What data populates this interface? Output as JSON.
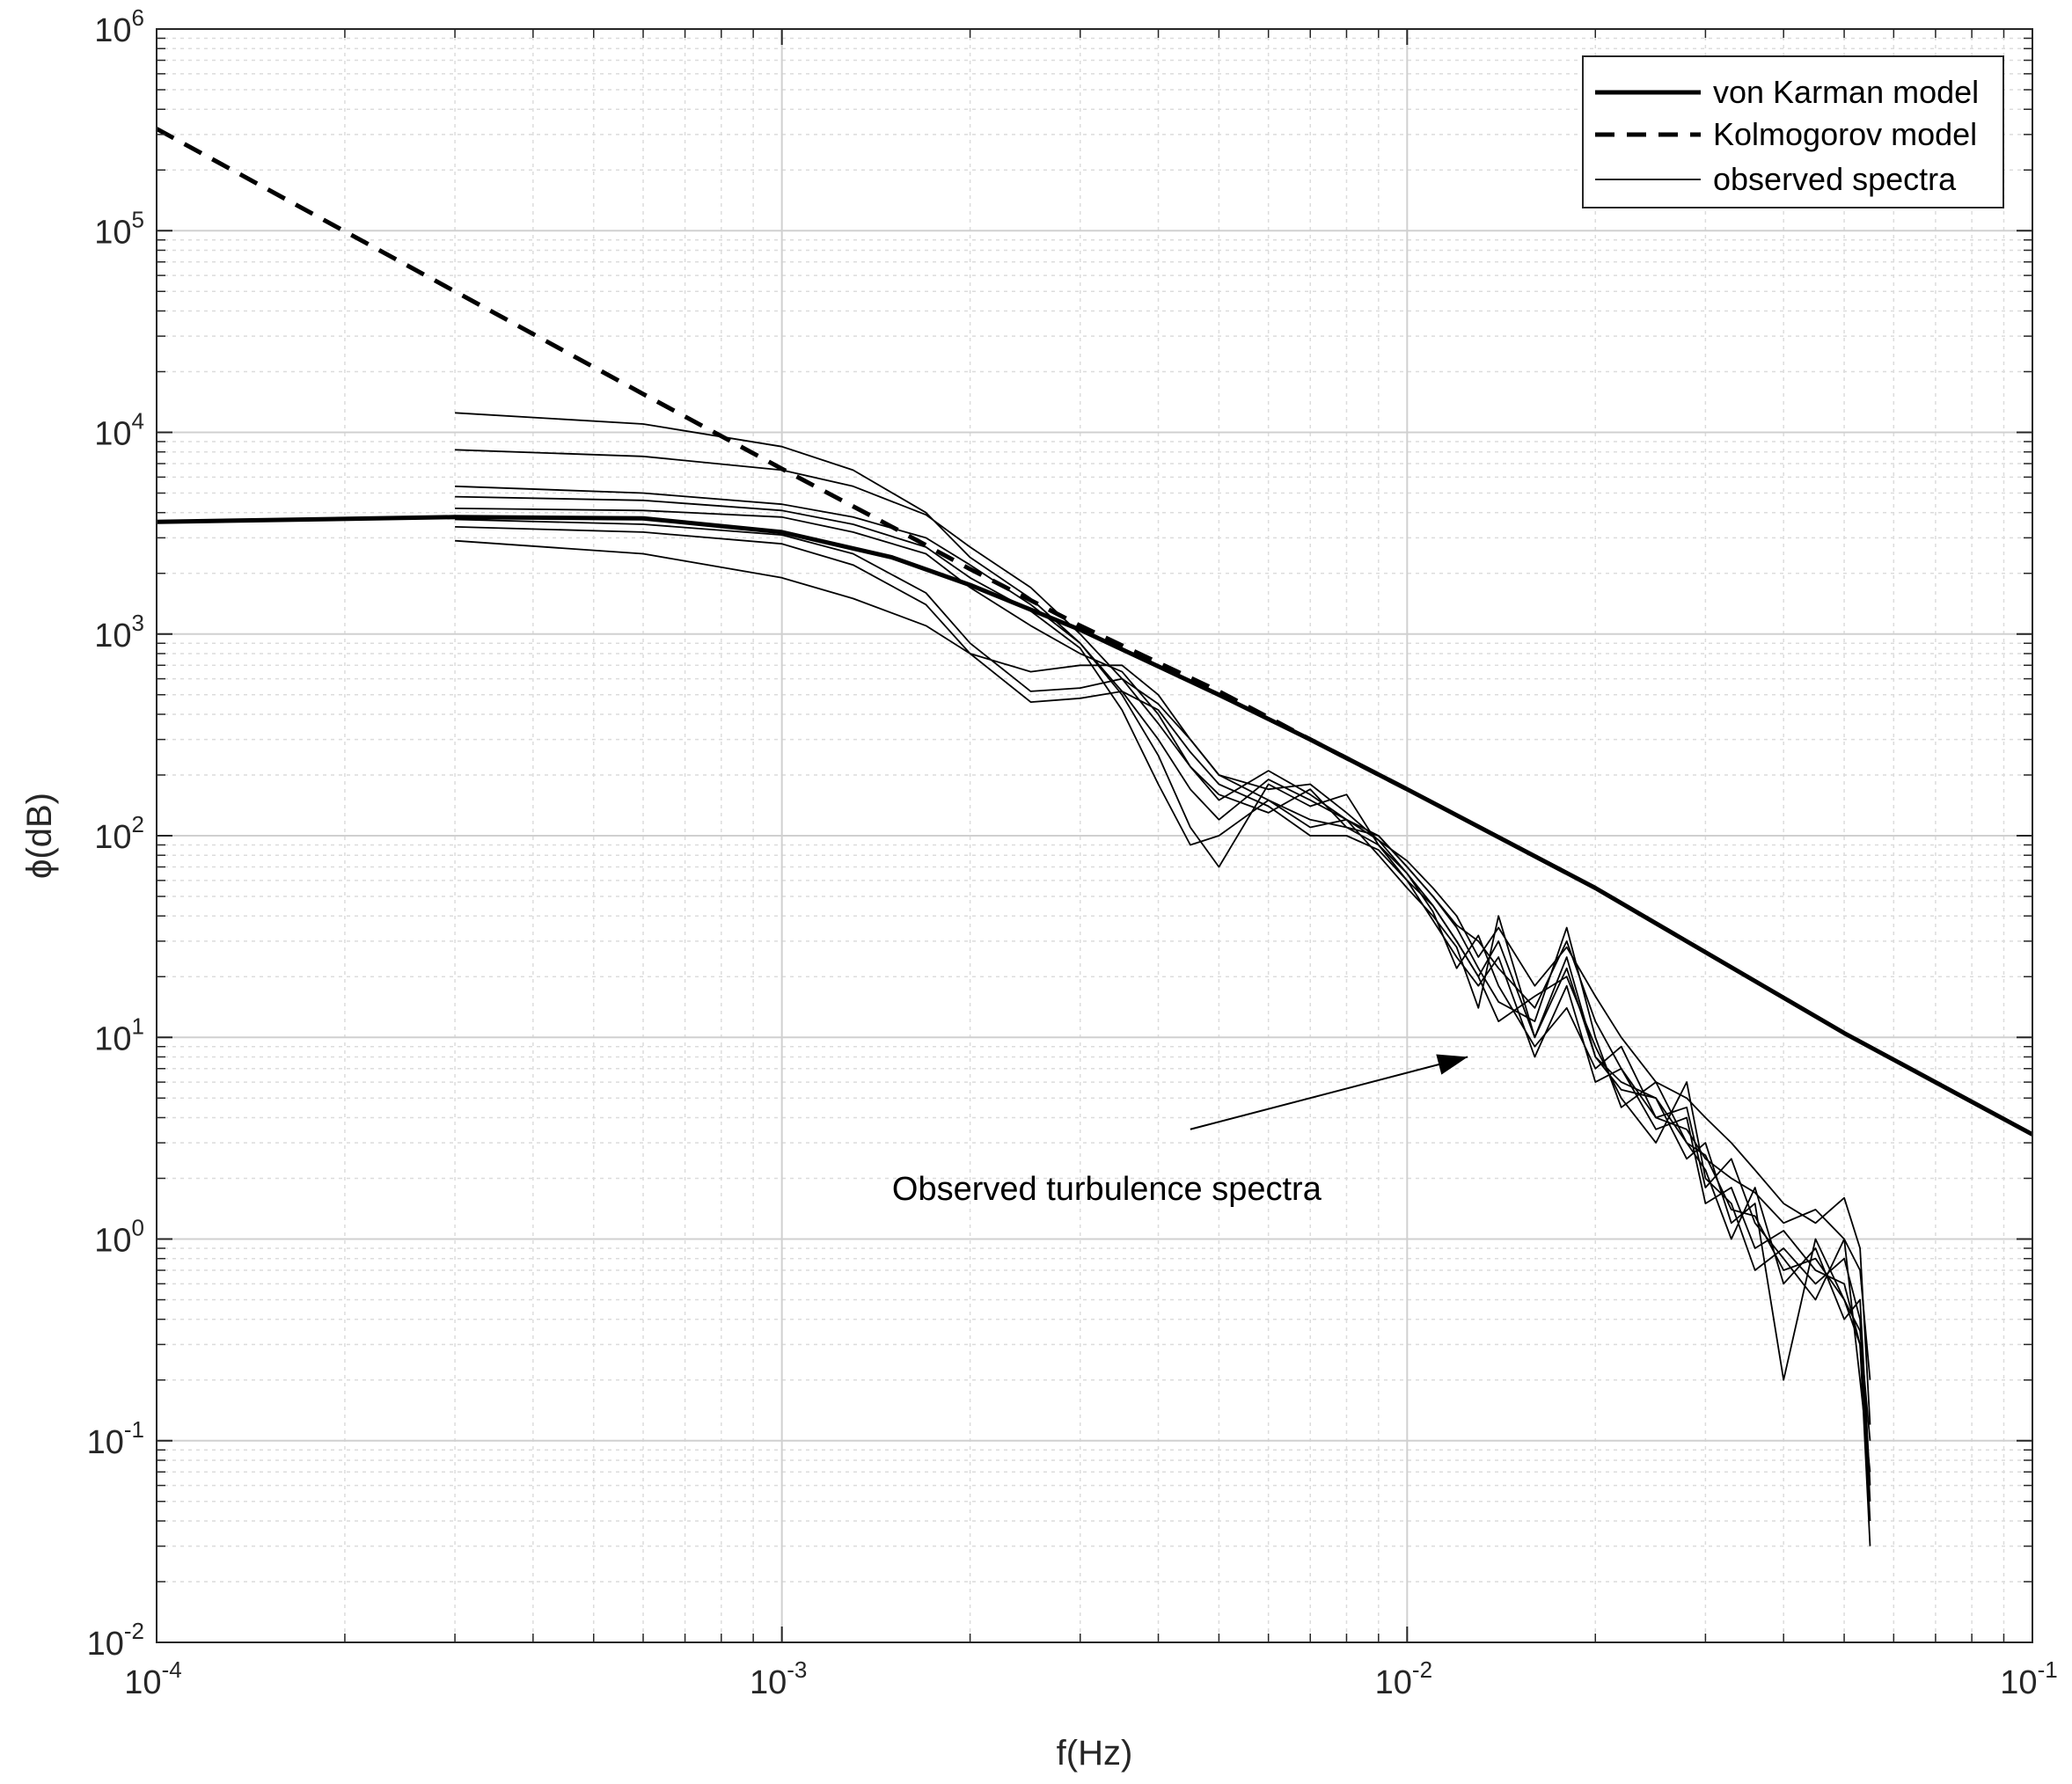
{
  "chart_data": {
    "type": "line",
    "xlabel": "f(Hz)",
    "ylabel": "ϕ(dB)",
    "xscale": "log",
    "yscale": "log",
    "xlim": [
      0.0001,
      0.1
    ],
    "ylim": [
      0.01,
      1000000
    ],
    "grid": true,
    "minor_grid": true,
    "legend_position": "top-right",
    "x_ticks": [
      {
        "base": "10",
        "exp": "-4",
        "value": 0.0001
      },
      {
        "base": "10",
        "exp": "-3",
        "value": 0.001
      },
      {
        "base": "10",
        "exp": "-2",
        "value": 0.01
      },
      {
        "base": "10",
        "exp": "-1",
        "value": 0.1
      }
    ],
    "y_ticks": [
      {
        "base": "10",
        "exp": "-2",
        "value": 0.01
      },
      {
        "base": "10",
        "exp": "-1",
        "value": 0.1
      },
      {
        "base": "10",
        "exp": "0",
        "value": 1
      },
      {
        "base": "10",
        "exp": "1",
        "value": 10
      },
      {
        "base": "10",
        "exp": "2",
        "value": 100
      },
      {
        "base": "10",
        "exp": "3",
        "value": 1000
      },
      {
        "base": "10",
        "exp": "4",
        "value": 10000
      },
      {
        "base": "10",
        "exp": "5",
        "value": 100000
      },
      {
        "base": "10",
        "exp": "6",
        "value": 1000000
      }
    ],
    "legend": [
      {
        "label": "von Karman model",
        "style": "thick-solid"
      },
      {
        "label": "Kolmogorov model",
        "style": "thick-dashed"
      },
      {
        "label": "observed spectra",
        "style": "thin-solid"
      }
    ],
    "annotation": {
      "text": "Observed turbulence spectra",
      "arrow_from": [
        0.0045,
        3.5
      ],
      "arrow_to": [
        0.0125,
        8.0
      ]
    },
    "series": [
      {
        "name": "von Karman model",
        "style": "thick-solid",
        "x": [
          0.0001,
          0.0003,
          0.0006,
          0.001,
          0.0015,
          0.002,
          0.003,
          0.005,
          0.007,
          0.01,
          0.02,
          0.05,
          0.1
        ],
        "y": [
          3600,
          3800,
          3750,
          3200,
          2400,
          1750,
          1050,
          500,
          300,
          170,
          55,
          10.5,
          3.3
        ]
      },
      {
        "name": "Kolmogorov model",
        "style": "thick-dashed",
        "x": [
          0.0001,
          0.0003,
          0.0006,
          0.001,
          0.0015,
          0.002,
          0.003,
          0.005,
          0.007,
          0.01
        ],
        "y": [
          320000,
          50000,
          15500,
          6600,
          3400,
          2100,
          1100,
          520,
          300,
          170
        ]
      },
      {
        "name": "observed spectra",
        "style": "thin-solid",
        "x": [
          0.0003,
          0.0006,
          0.001,
          0.0013,
          0.0017,
          0.002,
          0.0025,
          0.003,
          0.0035,
          0.004,
          0.0045,
          0.005,
          0.006,
          0.007,
          0.008,
          0.009,
          0.01,
          0.011,
          0.012,
          0.013,
          0.014,
          0.016,
          0.018,
          0.02,
          0.022,
          0.025,
          0.028,
          0.03,
          0.033,
          0.036,
          0.04,
          0.045,
          0.05,
          0.053,
          0.055
        ],
        "y": [
          12500,
          11000,
          8500,
          6500,
          4000,
          2400,
          1500,
          900,
          520,
          300,
          170,
          120,
          190,
          150,
          120,
          95,
          75,
          55,
          40,
          25,
          35,
          18,
          28,
          16,
          10,
          6,
          5,
          4,
          3,
          2.2,
          1.5,
          1.2,
          1.6,
          0.9,
          0.12
        ]
      },
      {
        "name": "observed spectra",
        "style": "thin-solid",
        "x": [
          0.0003,
          0.0006,
          0.001,
          0.0013,
          0.0017,
          0.002,
          0.0025,
          0.003,
          0.0035,
          0.004,
          0.0045,
          0.005,
          0.006,
          0.007,
          0.008,
          0.009,
          0.01,
          0.011,
          0.012,
          0.013,
          0.014,
          0.016,
          0.018,
          0.02,
          0.022,
          0.025,
          0.028,
          0.03,
          0.033,
          0.036,
          0.04,
          0.045,
          0.05,
          0.053,
          0.055
        ],
        "y": [
          8200,
          7600,
          6500,
          5400,
          3900,
          2700,
          1700,
          1000,
          600,
          360,
          220,
          150,
          210,
          160,
          120,
          100,
          70,
          50,
          36,
          30,
          22,
          14,
          30,
          12,
          7,
          4,
          3.5,
          2.5,
          2,
          1.7,
          1.2,
          1.4,
          1.0,
          0.7,
          0.2
        ]
      },
      {
        "name": "observed spectra",
        "style": "thin-solid",
        "x": [
          0.0003,
          0.0006,
          0.001,
          0.0013,
          0.0017,
          0.002,
          0.0025,
          0.003,
          0.0035,
          0.004,
          0.0045,
          0.005,
          0.006,
          0.007,
          0.008,
          0.009,
          0.01,
          0.011,
          0.012,
          0.013,
          0.014,
          0.016,
          0.018,
          0.02,
          0.022,
          0.025,
          0.028,
          0.03,
          0.033,
          0.036,
          0.04,
          0.045,
          0.05,
          0.053,
          0.055
        ],
        "y": [
          5400,
          5000,
          4400,
          3800,
          3000,
          2200,
          1400,
          900,
          500,
          250,
          110,
          70,
          180,
          140,
          160,
          90,
          60,
          45,
          30,
          20,
          12,
          16,
          20,
          9,
          5,
          3,
          6,
          2,
          1.5,
          0.7,
          0.9,
          0.6,
          0.8,
          0.4,
          0.05
        ]
      },
      {
        "name": "observed spectra",
        "style": "thin-solid",
        "x": [
          0.0003,
          0.0006,
          0.001,
          0.0013,
          0.0017,
          0.002,
          0.0025,
          0.003,
          0.0035,
          0.004,
          0.0045,
          0.005,
          0.006,
          0.007,
          0.008,
          0.009,
          0.01,
          0.011,
          0.012,
          0.013,
          0.014,
          0.016,
          0.018,
          0.02,
          0.022,
          0.025,
          0.028,
          0.03,
          0.033,
          0.036,
          0.04,
          0.045,
          0.05,
          0.053,
          0.055
        ],
        "y": [
          4800,
          4600,
          4100,
          3500,
          2700,
          1900,
          1300,
          850,
          420,
          180,
          90,
          100,
          150,
          110,
          120,
          80,
          55,
          40,
          28,
          14,
          40,
          10,
          25,
          8,
          6,
          5,
          2.5,
          3,
          1.2,
          1.5,
          0.2,
          1.0,
          0.5,
          0.3,
          0.03
        ]
      },
      {
        "name": "observed spectra",
        "style": "thin-solid",
        "x": [
          0.0003,
          0.0006,
          0.001,
          0.0013,
          0.0017,
          0.002,
          0.0025,
          0.003,
          0.0035,
          0.004,
          0.0045,
          0.005,
          0.006,
          0.007,
          0.008,
          0.009,
          0.01,
          0.011,
          0.012,
          0.013,
          0.014,
          0.016,
          0.018,
          0.02,
          0.022,
          0.025,
          0.028,
          0.03,
          0.033,
          0.036,
          0.04,
          0.045,
          0.05,
          0.053,
          0.055
        ],
        "y": [
          4200,
          4100,
          3800,
          3200,
          2500,
          1700,
          1100,
          800,
          650,
          400,
          220,
          160,
          130,
          170,
          110,
          90,
          65,
          42,
          22,
          32,
          18,
          9,
          14,
          7,
          9,
          4,
          4.5,
          1.8,
          2.5,
          1.2,
          0.8,
          0.5,
          1.0,
          0.2,
          0.07
        ]
      },
      {
        "name": "observed spectra",
        "style": "thin-solid",
        "x": [
          0.0003,
          0.0006,
          0.001,
          0.0013,
          0.0017,
          0.002,
          0.0025,
          0.003,
          0.0035,
          0.004,
          0.0045,
          0.005,
          0.006,
          0.007,
          0.008,
          0.009,
          0.01,
          0.011,
          0.012,
          0.013,
          0.014,
          0.016,
          0.018,
          0.02,
          0.022,
          0.025,
          0.028,
          0.03,
          0.033,
          0.036,
          0.04,
          0.045,
          0.05,
          0.053,
          0.055
        ],
        "y": [
          3700,
          3500,
          3100,
          2500,
          1600,
          900,
          520,
          540,
          600,
          450,
          300,
          200,
          150,
          120,
          110,
          100,
          70,
          50,
          35,
          22,
          15,
          12,
          35,
          10,
          4.5,
          6,
          3,
          2.2,
          1.0,
          1.8,
          0.6,
          0.9,
          0.4,
          0.5,
          0.06
        ]
      },
      {
        "name": "observed spectra",
        "style": "thin-solid",
        "x": [
          0.0003,
          0.0006,
          0.001,
          0.0013,
          0.0017,
          0.002,
          0.0025,
          0.003,
          0.0035,
          0.004,
          0.0045,
          0.005,
          0.006,
          0.007,
          0.008,
          0.009,
          0.01,
          0.011,
          0.012,
          0.013,
          0.014,
          0.016,
          0.018,
          0.02,
          0.022,
          0.025,
          0.028,
          0.03,
          0.033,
          0.036,
          0.04,
          0.045,
          0.05,
          0.053,
          0.055
        ],
        "y": [
          3400,
          3200,
          2800,
          2200,
          1400,
          800,
          460,
          480,
          520,
          420,
          260,
          180,
          140,
          100,
          100,
          85,
          60,
          38,
          25,
          18,
          25,
          8,
          18,
          6,
          7,
          3.5,
          4,
          1.5,
          1.8,
          0.9,
          1.1,
          0.7,
          0.6,
          0.3,
          0.04
        ]
      },
      {
        "name": "observed spectra",
        "style": "thin-solid",
        "x": [
          0.0003,
          0.0006,
          0.001,
          0.0013,
          0.0017,
          0.002,
          0.0025,
          0.003,
          0.0035,
          0.004,
          0.0045,
          0.005,
          0.006,
          0.007,
          0.008,
          0.009,
          0.01,
          0.011,
          0.012,
          0.013,
          0.014,
          0.016,
          0.018,
          0.02,
          0.022,
          0.025,
          0.028,
          0.03,
          0.033,
          0.036,
          0.04,
          0.045,
          0.05,
          0.053,
          0.055
        ],
        "y": [
          2900,
          2500,
          1900,
          1500,
          1100,
          800,
          650,
          700,
          700,
          500,
          300,
          200,
          170,
          180,
          130,
          95,
          65,
          45,
          30,
          20,
          30,
          10,
          22,
          8,
          5.5,
          5,
          3,
          2.6,
          1.4,
          1.3,
          0.7,
          0.8,
          0.5,
          0.35,
          0.1
        ]
      }
    ]
  }
}
